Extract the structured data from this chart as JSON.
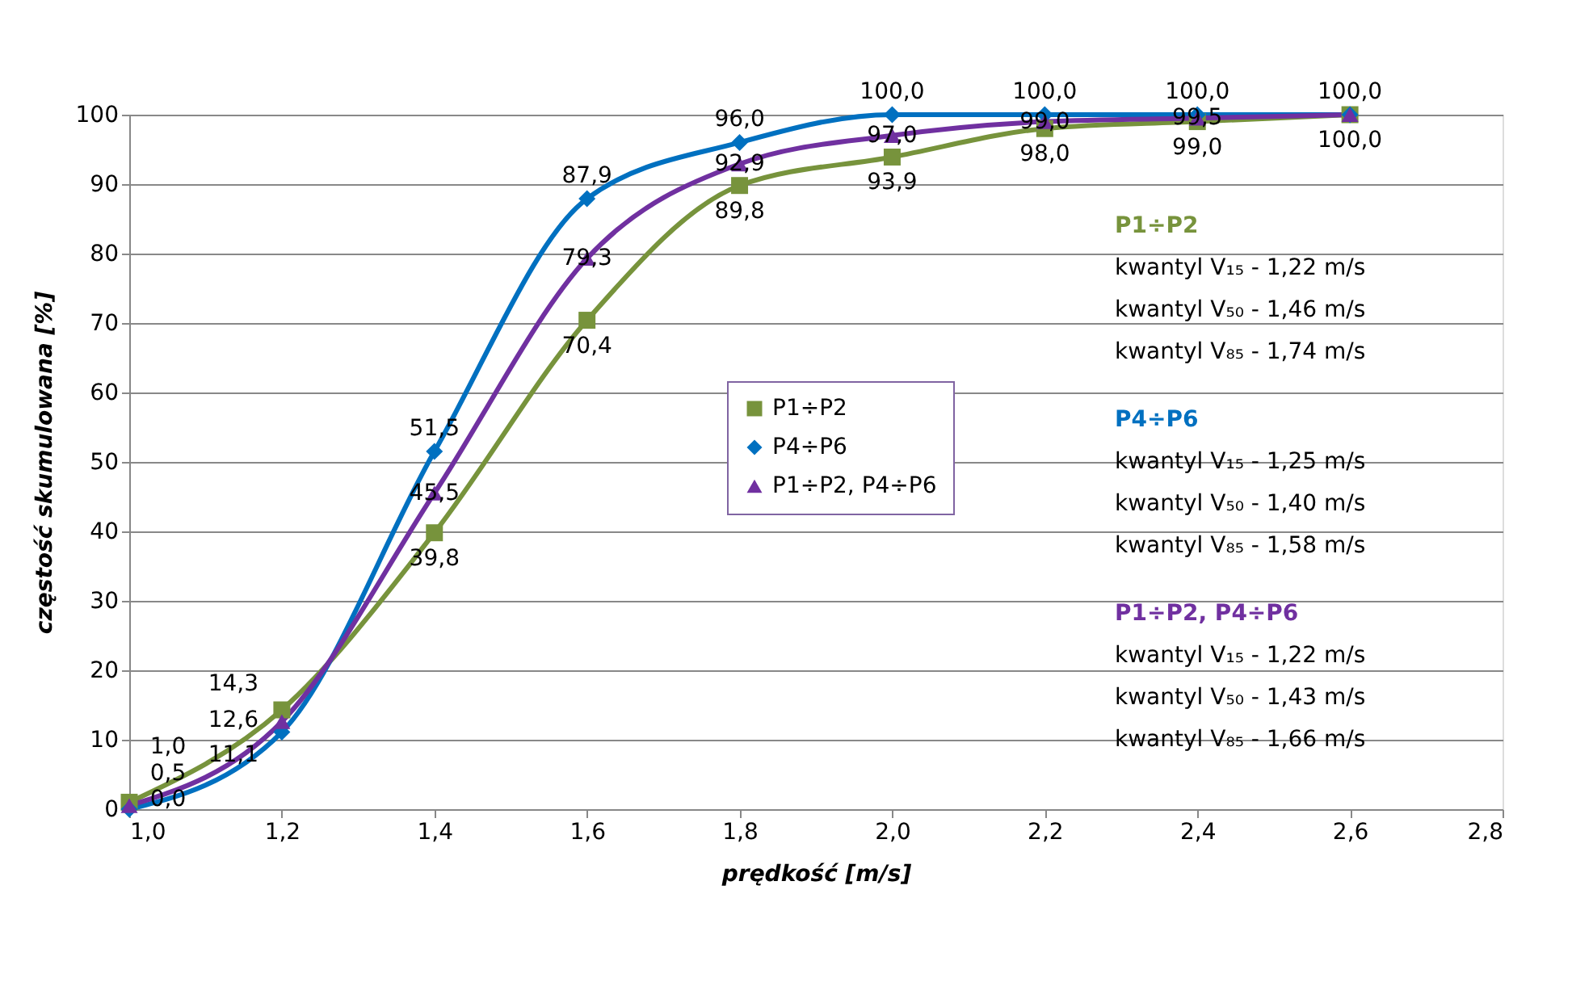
{
  "chart_data": {
    "type": "line",
    "xlabel": "prędkość [m/s]",
    "ylabel": "częstość skumulowana [%]",
    "x": [
      1.0,
      1.2,
      1.4,
      1.6,
      1.8,
      2.0,
      2.2,
      2.4,
      2.6
    ],
    "series": [
      {
        "name": "P1÷P2",
        "color": "#77933c",
        "marker": "square",
        "values": [
          1.0,
          14.3,
          39.8,
          70.4,
          89.8,
          93.9,
          98.0,
          99.0,
          100.0
        ],
        "value_labels": [
          "1,0",
          "14,3",
          "39,8",
          "70,4",
          "89,8",
          "93,9",
          "98,0",
          "99,0",
          "100,0"
        ]
      },
      {
        "name": "P4÷P6",
        "color": "#0070c0",
        "marker": "diamond",
        "values": [
          0.0,
          11.1,
          51.5,
          87.9,
          96.0,
          100.0,
          100.0,
          100.0,
          100.0
        ],
        "value_labels": [
          "0,0",
          "11,1",
          "51,5",
          "87,9",
          "96,0",
          "100,0",
          "100,0",
          "100,0",
          "100,0"
        ]
      },
      {
        "name": "P1÷P2, P4÷P6",
        "color": "#7030a0",
        "marker": "triangle",
        "values": [
          0.5,
          12.6,
          45.5,
          79.3,
          92.9,
          97.0,
          99.0,
          99.5,
          100.0
        ],
        "value_labels": [
          "0,5",
          "12,6",
          "45,5",
          "79,3",
          "92,9",
          "97,0",
          "99,0",
          "99,5",
          null
        ]
      }
    ],
    "xlim": [
      1.0,
      2.8
    ],
    "xticks": [
      {
        "value": 1.0,
        "label": "1,0"
      },
      {
        "value": 1.2,
        "label": "1,2"
      },
      {
        "value": 1.4,
        "label": "1,4"
      },
      {
        "value": 1.6,
        "label": "1,6"
      },
      {
        "value": 1.8,
        "label": "1,8"
      },
      {
        "value": 2.0,
        "label": "2,0"
      },
      {
        "value": 2.2,
        "label": "2,2"
      },
      {
        "value": 2.4,
        "label": "2,4"
      },
      {
        "value": 2.6,
        "label": "2,6"
      },
      {
        "value": 2.8,
        "label": "2,8"
      }
    ],
    "ylim": [
      0,
      100
    ],
    "yticks": [
      0,
      10,
      20,
      30,
      40,
      50,
      60,
      70,
      80,
      90,
      100
    ],
    "grid": "y",
    "legend": "center",
    "line_style": "solid",
    "annotations": [
      "P1÷P2\nkwantyl V₁₅ - 1,22 m/s\nkwantyl V₅₀ - 1,46 m/s\nkwantyl V₈₅ - 1,74 m/s",
      "P4÷P6\nkwantyl V₁₅ - 1,25 m/s\nkwantyl V₅₀ - 1,40 m/s\nkwantyl V₈₅ - 1,58 m/s",
      "P1÷P2, P4÷P6\nkwantyl V₁₅ - 1,22 m/s\nkwantyl V₅₀ - 1,43 m/s\nkwantyl V₈₅ - 1,66 m/s"
    ]
  }
}
